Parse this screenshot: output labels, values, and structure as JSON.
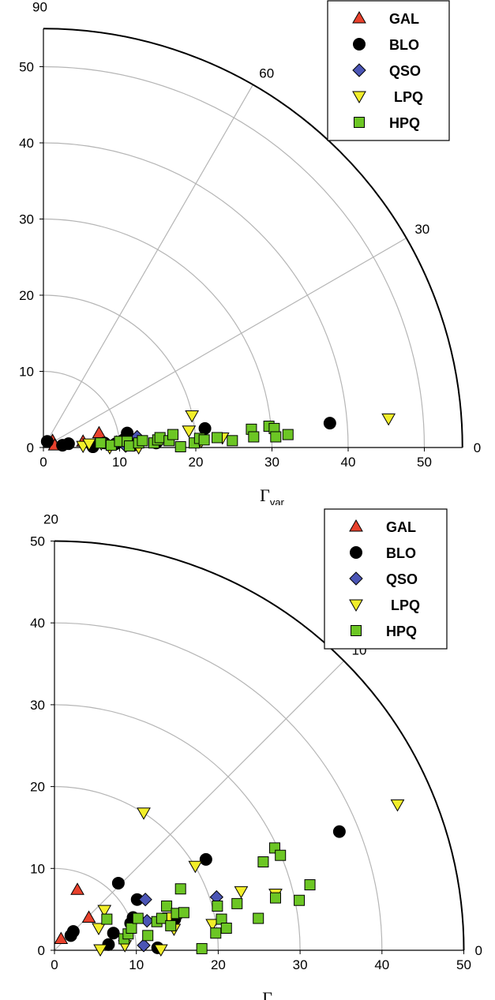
{
  "colors": {
    "GAL": "#e8412c",
    "BLO": "#000000",
    "QSO": "#4b55b5",
    "LPQ": "#f2ee2a",
    "HPQ": "#6cc624",
    "grid": "#b5b5b5",
    "outer_arc": "#000000"
  },
  "chart_data": [
    {
      "type": "scatter",
      "coordinate_system": "polar",
      "xlabel_symbol": "Γ",
      "xlabel_sub": "var",
      "xlim": [
        0,
        55
      ],
      "ylim": [
        0,
        55
      ],
      "ring_values": [
        10,
        20,
        30,
        40,
        50
      ],
      "x_ticks": [
        0,
        10,
        20,
        30,
        40,
        50
      ],
      "y_ticks": [
        0,
        10,
        20,
        30,
        40,
        50
      ],
      "angle_labels": [
        "90",
        "60",
        "30",
        "0"
      ],
      "angles": [
        90,
        60,
        30,
        0
      ],
      "outer_radius": 55,
      "legend": [
        "GAL",
        "BLO",
        "QSO",
        "LPQ",
        "HPQ"
      ],
      "legend_position": "top-right",
      "series": [
        {
          "name": "GAL",
          "marker": "triangle-up",
          "points": [
            [
              1.2,
              0.9
            ],
            [
              5.2,
              0.8
            ],
            [
              7.3,
              1.9
            ],
            [
              1.5,
              0.3
            ]
          ]
        },
        {
          "name": "BLO",
          "marker": "circle",
          "points": [
            [
              0.5,
              0.8
            ],
            [
              2.5,
              0.3
            ],
            [
              3.3,
              0.5
            ],
            [
              6.5,
              0.1
            ],
            [
              8.0,
              0.6
            ],
            [
              9.5,
              0.5
            ],
            [
              10.5,
              1.0
            ],
            [
              11.0,
              1.9
            ],
            [
              11.8,
              0.3
            ],
            [
              14.8,
              0.6
            ],
            [
              21.2,
              2.5
            ],
            [
              37.6,
              3.2
            ]
          ]
        },
        {
          "name": "QSO",
          "marker": "diamond",
          "points": [
            [
              10.8,
              0.2
            ],
            [
              12.3,
              1.4
            ],
            [
              9.6,
              0.7
            ]
          ]
        },
        {
          "name": "LPQ",
          "marker": "triangle-down",
          "points": [
            [
              5.2,
              0.2
            ],
            [
              6.0,
              0.5
            ],
            [
              7.6,
              0.5
            ],
            [
              8.7,
              0.0
            ],
            [
              12.5,
              0.0
            ],
            [
              19.1,
              2.2
            ],
            [
              19.5,
              4.2
            ],
            [
              20.7,
              0.8
            ],
            [
              23.5,
              1.3
            ],
            [
              45.3,
              3.8
            ]
          ]
        },
        {
          "name": "HPQ",
          "marker": "square",
          "points": [
            [
              7.5,
              0.6
            ],
            [
              8.9,
              0.3
            ],
            [
              10.0,
              0.8
            ],
            [
              11.0,
              0.8
            ],
            [
              11.3,
              0.2
            ],
            [
              12.5,
              0.6
            ],
            [
              13.0,
              0.9
            ],
            [
              14.5,
              0.6
            ],
            [
              15.0,
              1.0
            ],
            [
              15.3,
              1.3
            ],
            [
              16.5,
              0.9
            ],
            [
              17.0,
              1.7
            ],
            [
              18.0,
              0.1
            ],
            [
              19.8,
              0.6
            ],
            [
              20.5,
              1.2
            ],
            [
              21.1,
              1.0
            ],
            [
              22.8,
              1.3
            ],
            [
              24.8,
              0.9
            ],
            [
              27.3,
              2.4
            ],
            [
              27.6,
              1.4
            ],
            [
              29.6,
              2.8
            ],
            [
              30.3,
              2.5
            ],
            [
              30.5,
              1.4
            ],
            [
              32.1,
              1.7
            ]
          ]
        }
      ]
    },
    {
      "type": "scatter",
      "coordinate_system": "polar",
      "xlabel_symbol": "Γ",
      "xlabel_sub": "",
      "xlim": [
        0,
        50
      ],
      "ylim": [
        0,
        50
      ],
      "ring_values": [
        10,
        20,
        30,
        40
      ],
      "x_ticks": [
        0,
        10,
        20,
        30,
        40,
        50
      ],
      "y_ticks": [
        0,
        10,
        20,
        30,
        40,
        50
      ],
      "angle_labels": [
        "20",
        "10",
        "0"
      ],
      "angles": [
        90,
        45,
        0
      ],
      "outer_radius": 50,
      "legend": [
        "GAL",
        "BLO",
        "QSO",
        "LPQ",
        "HPQ"
      ],
      "legend_position": "top-right",
      "series": [
        {
          "name": "GAL",
          "marker": "triangle-up",
          "points": [
            [
              0.8,
              1.4
            ],
            [
              2.8,
              7.4
            ],
            [
              4.2,
              4.0
            ]
          ]
        },
        {
          "name": "BLO",
          "marker": "circle",
          "points": [
            [
              2.0,
              1.8
            ],
            [
              2.3,
              2.3
            ],
            [
              6.6,
              0.7
            ],
            [
              7.8,
              8.2
            ],
            [
              7.2,
              2.1
            ],
            [
              9.3,
              3.3
            ],
            [
              9.6,
              4.0
            ],
            [
              10.1,
              6.2
            ],
            [
              12.6,
              0.3
            ],
            [
              14.7,
              3.8
            ],
            [
              18.5,
              11.1
            ],
            [
              34.8,
              14.5
            ]
          ]
        },
        {
          "name": "QSO",
          "marker": "diamond",
          "points": [
            [
              10.9,
              0.6
            ],
            [
              11.1,
              6.2
            ],
            [
              11.3,
              3.6
            ],
            [
              19.8,
              6.5
            ]
          ]
        },
        {
          "name": "LPQ",
          "marker": "triangle-down",
          "points": [
            [
              5.6,
              0.1
            ],
            [
              5.4,
              2.7
            ],
            [
              6.1,
              4.9
            ],
            [
              8.6,
              0.6
            ],
            [
              10.9,
              16.8
            ],
            [
              13.0,
              0.1
            ],
            [
              14.0,
              4.0
            ],
            [
              14.6,
              2.6
            ],
            [
              17.2,
              10.3
            ],
            [
              19.3,
              3.2
            ],
            [
              22.8,
              7.2
            ],
            [
              27.0,
              6.9
            ],
            [
              41.9,
              17.8
            ]
          ]
        },
        {
          "name": "HPQ",
          "marker": "square",
          "points": [
            [
              6.4,
              3.8
            ],
            [
              8.5,
              1.4
            ],
            [
              9.0,
              2.0
            ],
            [
              9.4,
              2.7
            ],
            [
              10.2,
              3.9
            ],
            [
              11.4,
              1.8
            ],
            [
              12.5,
              3.5
            ],
            [
              13.1,
              3.9
            ],
            [
              13.7,
              5.4
            ],
            [
              14.2,
              3.0
            ],
            [
              14.9,
              4.5
            ],
            [
              15.4,
              7.5
            ],
            [
              15.8,
              4.6
            ],
            [
              18.0,
              0.2
            ],
            [
              19.7,
              2.1
            ],
            [
              19.9,
              5.4
            ],
            [
              20.4,
              3.8
            ],
            [
              21.0,
              2.7
            ],
            [
              22.3,
              5.7
            ],
            [
              24.9,
              3.9
            ],
            [
              25.5,
              10.8
            ],
            [
              26.9,
              12.5
            ],
            [
              27.0,
              6.4
            ],
            [
              27.6,
              11.6
            ],
            [
              29.9,
              6.1
            ],
            [
              31.2,
              8.0
            ]
          ]
        }
      ]
    }
  ]
}
